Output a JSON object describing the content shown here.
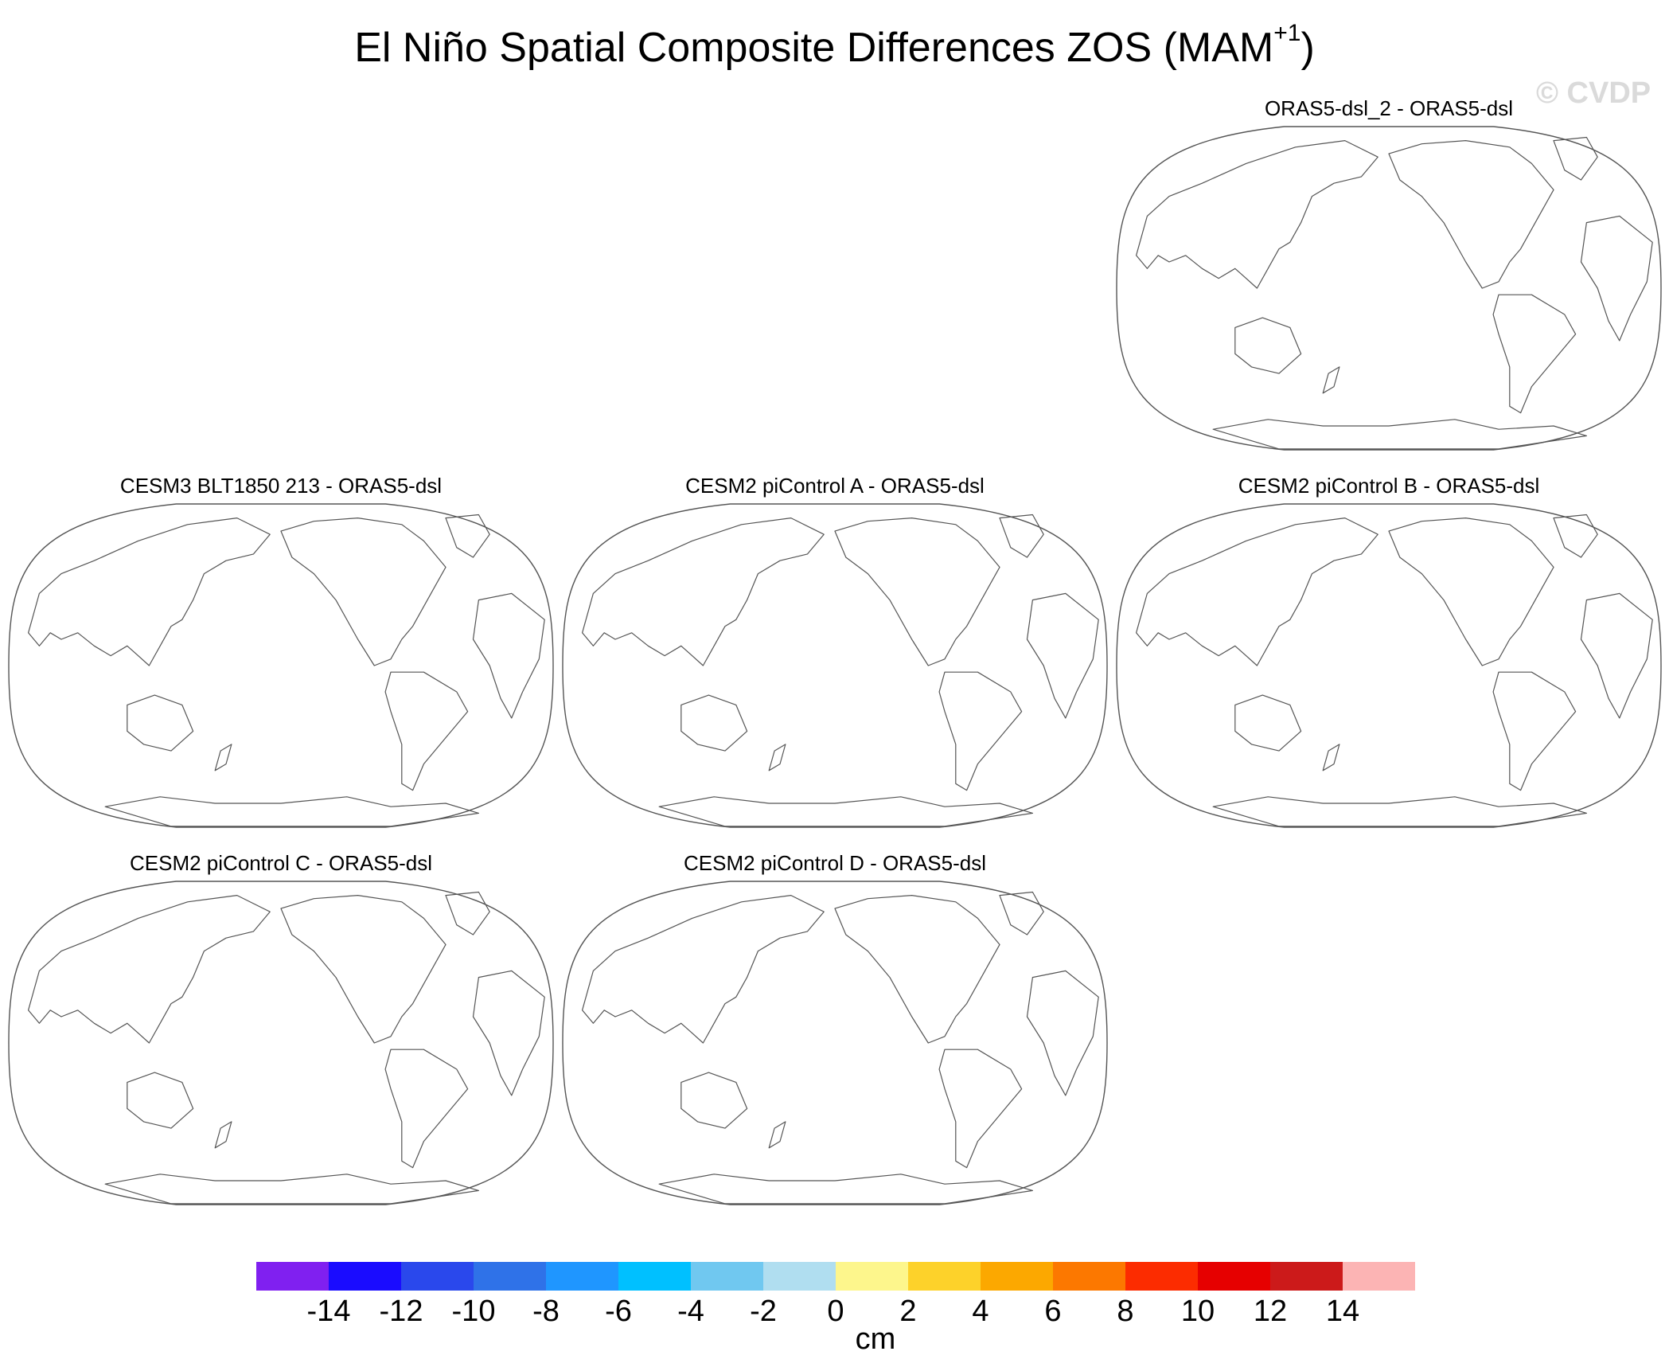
{
  "chart_data": {
    "type": "heatmap",
    "title": "El Niño Spatial Composite Differences ZOS (MAM",
    "title_superscript": "+1",
    "title_suffix": ")",
    "watermark": "© CVDP",
    "panels": [
      {
        "title": "ORAS5-dsl_2 - ORAS5-dsl"
      },
      {
        "title": "CESM3 BLT1850 213 - ORAS5-dsl"
      },
      {
        "title": "CESM2 piControl A - ORAS5-dsl"
      },
      {
        "title": "CESM2 piControl B - ORAS5-dsl"
      },
      {
        "title": "CESM2 piControl C - ORAS5-dsl"
      },
      {
        "title": "CESM2 piControl D - ORAS5-dsl"
      }
    ],
    "colorbar": {
      "units": "cm",
      "levels": [
        "-14",
        "-12",
        "-10",
        "-8",
        "-6",
        "-4",
        "-2",
        "0",
        "2",
        "4",
        "6",
        "8",
        "10",
        "12",
        "14"
      ],
      "colors": [
        "#8020f0",
        "#1a0cff",
        "#2a48ec",
        "#2f72e8",
        "#1f96ff",
        "#00c0ff",
        "#70c8f0",
        "#b0def0",
        "#fdf68c",
        "#fdd22a",
        "#fca800",
        "#fc7800",
        "#fc2c00",
        "#e60000",
        "#cc1a1a",
        "#fcb4b4"
      ]
    }
  }
}
